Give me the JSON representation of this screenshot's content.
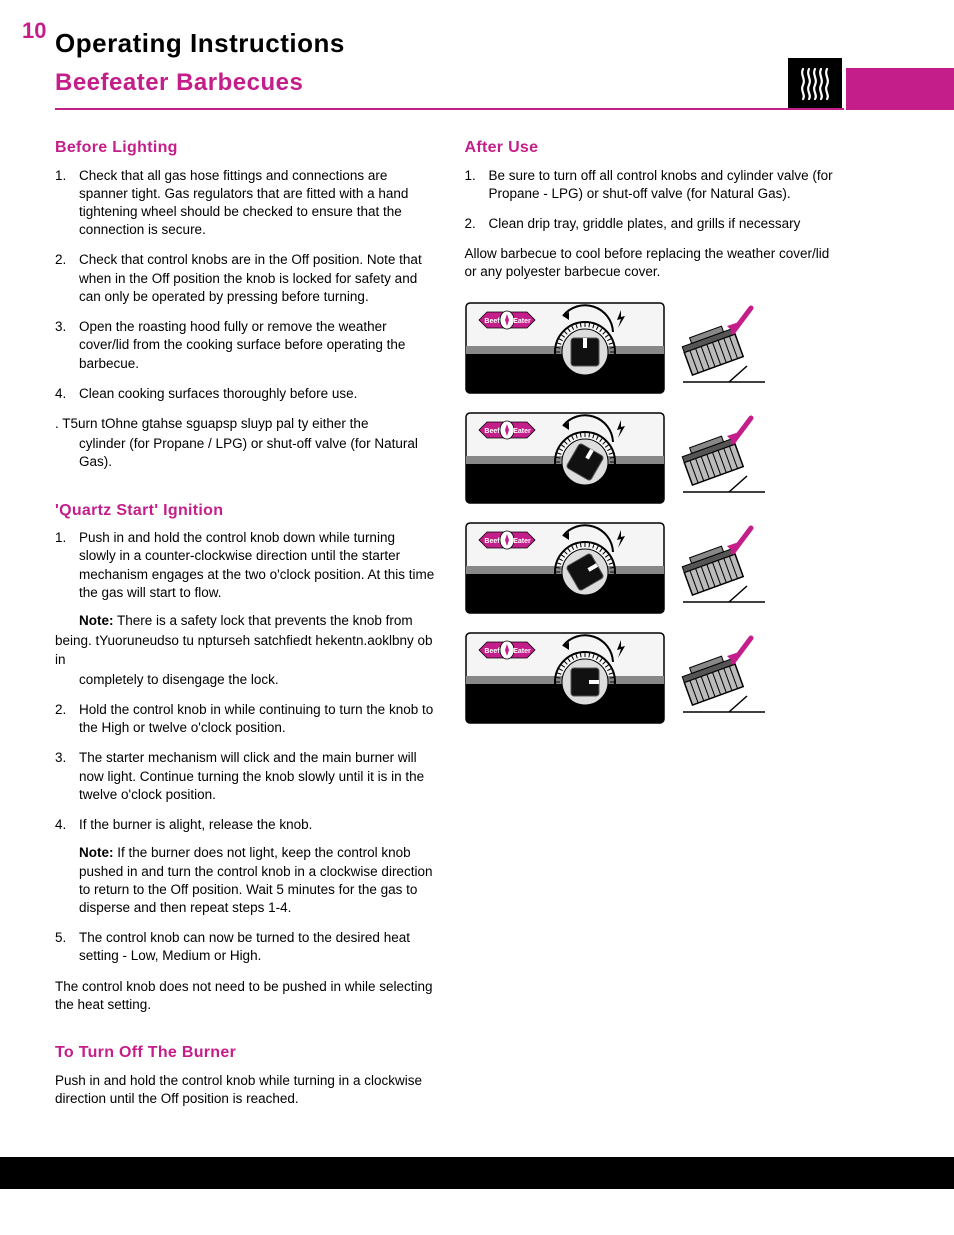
{
  "page_number": "10",
  "main_title": "Operating Instructions",
  "subtitle": "Beefeater Barbecues",
  "colors": {
    "accent": "#c41e8a",
    "text": "#000000",
    "background": "#ffffff",
    "footer": "#000000"
  },
  "left": {
    "before_lighting": {
      "heading": "Before Lighting",
      "items": [
        "Check that all gas hose fittings and connections are spanner tight. Gas regulators that are fitted with a hand tightening wheel should be checked to ensure that the connection is secure.",
        "Check that control knobs are in the Off position. Note that when in the Off position the knob is locked for safety and can only be operated by pressing before turning.",
        "Open the roasting hood fully or remove the weather cover/lid from the cooking surface before operating the barbecue.",
        "Clean cooking surfaces thoroughly before use."
      ],
      "garbled_line": ". T5urn tOhne gtahse sguapsp sluyp pal ty either the",
      "garbled_cont": "cylinder (for Propane / LPG) or shut-off valve (for Natural Gas)."
    },
    "quartz": {
      "heading": "'Quartz Start' Ignition",
      "item1": "Push in and hold the control knob down while turning slowly in a counter-clockwise direction until the starter mechanism engages at the two o'clock position.  At this time the gas will start to flow.",
      "note1_label": "Note:",
      "note1_a": " There is a safety lock that prevents the knob from",
      "note1_garbled": "being. tYuoruneudso tu npturseh satchfiedt hekentn.aoklbny ob in",
      "note1_c": "completely to disengage the lock.",
      "item2": "Hold the control knob in while continuing to turn the knob to the High or twelve o'clock position.",
      "item3": "The starter mechanism will click and the main burner will now light. Continue turning the knob slowly until it is in the twelve o'clock position.",
      "item4": "If the burner is alight, release the knob.",
      "note2_label": "Note:",
      "note2_text": " If the burner does not light, keep the control knob pushed in and turn the control knob in a clockwise direction to return to the Off position. Wait 5 minutes for the gas to disperse and then repeat steps 1-4.",
      "item5": "The control knob can now be turned to the desired heat setting - Low, Medium or High.",
      "tail": "The control knob does not need to be pushed in while selecting the heat setting."
    },
    "turnoff": {
      "heading": "To Turn Off The Burner",
      "text": "Push in and hold the control knob while turning in a clockwise direction until the Off position is reached."
    }
  },
  "right": {
    "after_use": {
      "heading": "After Use",
      "items": [
        "Be sure to turn off all control knobs and cylinder valve (for Propane - LPG) or shut-off valve (for Natural Gas).",
        "Clean drip tray, griddle plates, and grills if necessary"
      ],
      "tail": "Allow barbecue to cool before replacing the weather cover/lid or any polyester barbecue cover."
    },
    "diagrams": {
      "logo_left": "Beef",
      "logo_right": "Eater",
      "arrow_color": "#c41e8a",
      "knob_rotations_deg": [
        0,
        30,
        60,
        90
      ],
      "count": 4
    }
  }
}
